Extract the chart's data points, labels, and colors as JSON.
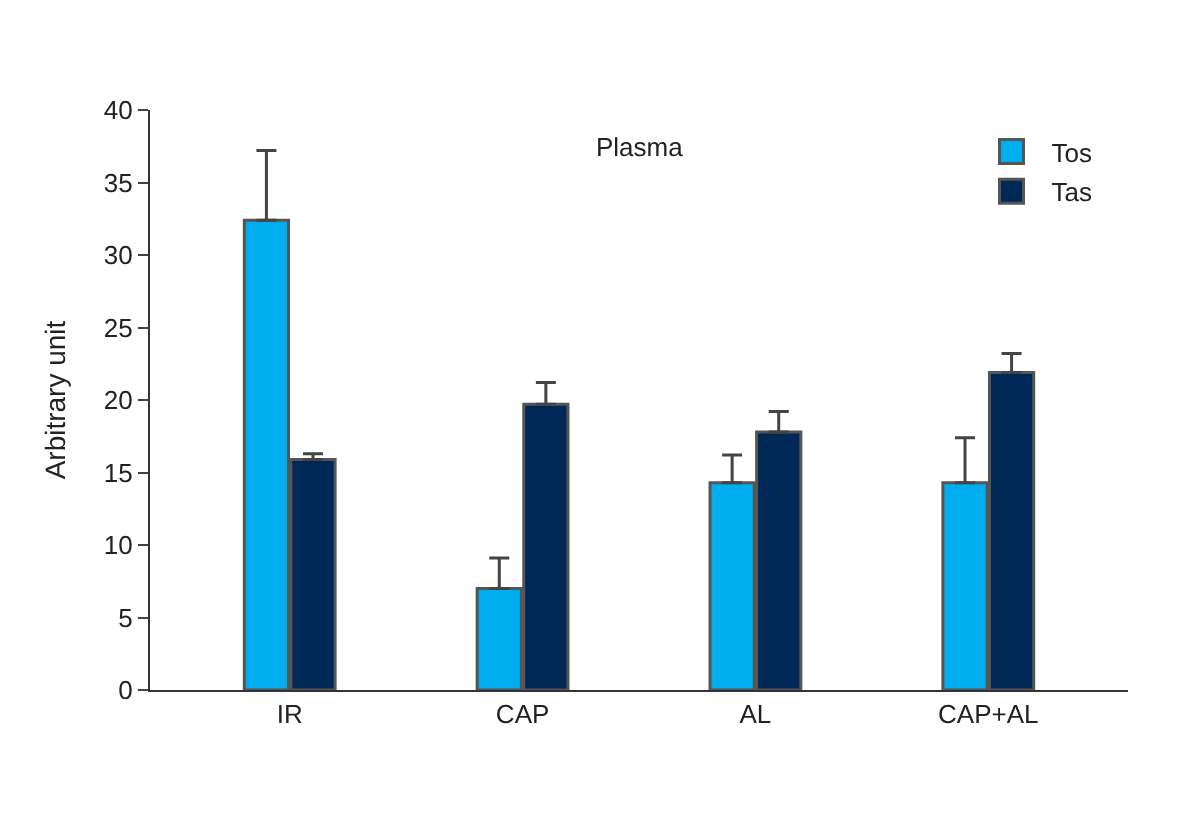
{
  "chart_data": {
    "type": "bar",
    "title": "Plasma",
    "ylabel": "Arbitrary unit",
    "categories": [
      "IR",
      "CAP",
      "AL",
      "CAP+AL"
    ],
    "series": [
      {
        "name": "Tos",
        "color": "#00aeef",
        "values": [
          32.4,
          7.0,
          14.3,
          14.3
        ],
        "errors": [
          [
            32.4,
            37.2
          ],
          [
            7.0,
            9.1
          ],
          [
            14.3,
            16.2
          ],
          [
            14.3,
            17.4
          ]
        ]
      },
      {
        "name": "Tas",
        "color": "#002856",
        "values": [
          15.9,
          19.7,
          17.8,
          21.9
        ],
        "errors": [
          [
            15.9,
            16.3
          ],
          [
            19.7,
            21.2
          ],
          [
            17.8,
            19.2
          ],
          [
            21.9,
            23.2
          ]
        ]
      }
    ],
    "ylim": [
      0,
      40
    ],
    "yticks": [
      0,
      5,
      10,
      15,
      20,
      25,
      30,
      35,
      40
    ],
    "legend": "top right"
  }
}
